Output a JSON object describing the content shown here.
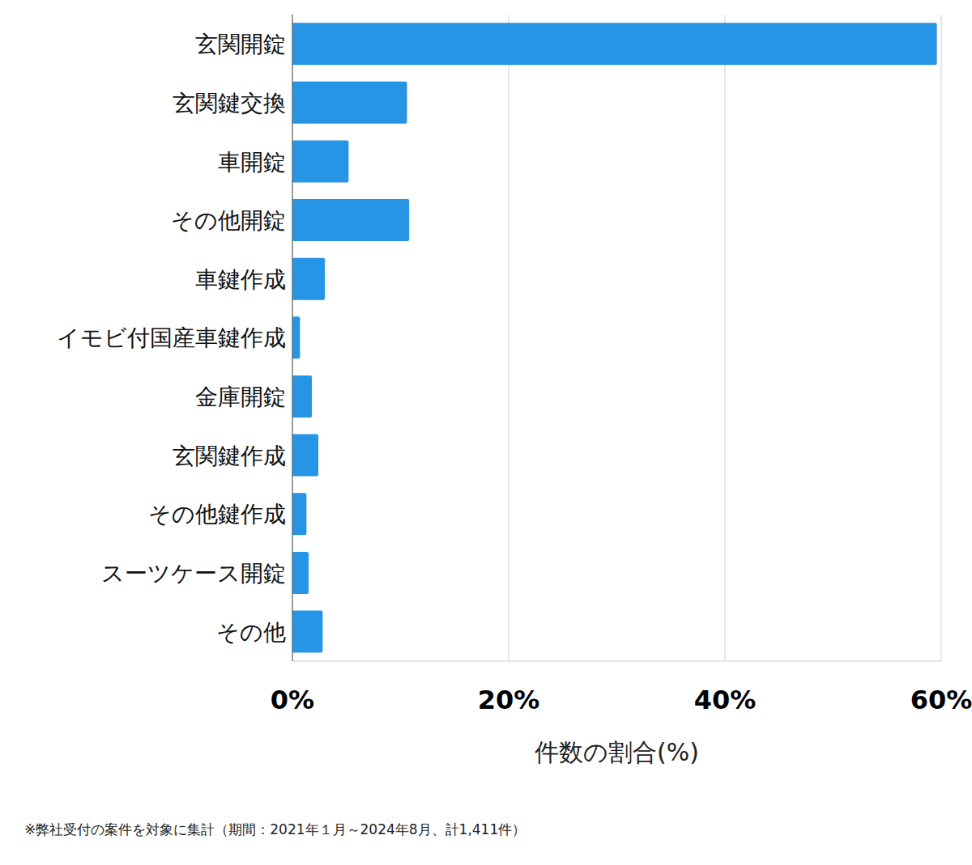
{
  "chart_data": {
    "type": "bar",
    "orientation": "horizontal",
    "x_label": "件数の割合(%)",
    "note": "※弊社受付の案件を対象に集計（期間：2021年１月～2024年8月、計1,411件）",
    "categories": [
      "玄関開錠",
      "玄関鍵交換",
      "車開錠",
      "その他開錠",
      "車鍵作成",
      "イモビ付国産車鍵作成",
      "金庫開錠",
      "玄関鍵作成",
      "その他鍵作成",
      "スーツケース開錠",
      "その他"
    ],
    "values": [
      59.6,
      10.6,
      5.2,
      10.8,
      3.0,
      0.7,
      1.8,
      2.4,
      1.3,
      1.5,
      2.8
    ],
    "color": "#2795e6",
    "xlim": [
      0,
      60
    ],
    "xticks": [
      {
        "value": 0,
        "label": "0%"
      },
      {
        "value": 20,
        "label": "20%"
      },
      {
        "value": 40,
        "label": "40%"
      },
      {
        "value": 60,
        "label": "60%"
      }
    ],
    "grid": true
  }
}
